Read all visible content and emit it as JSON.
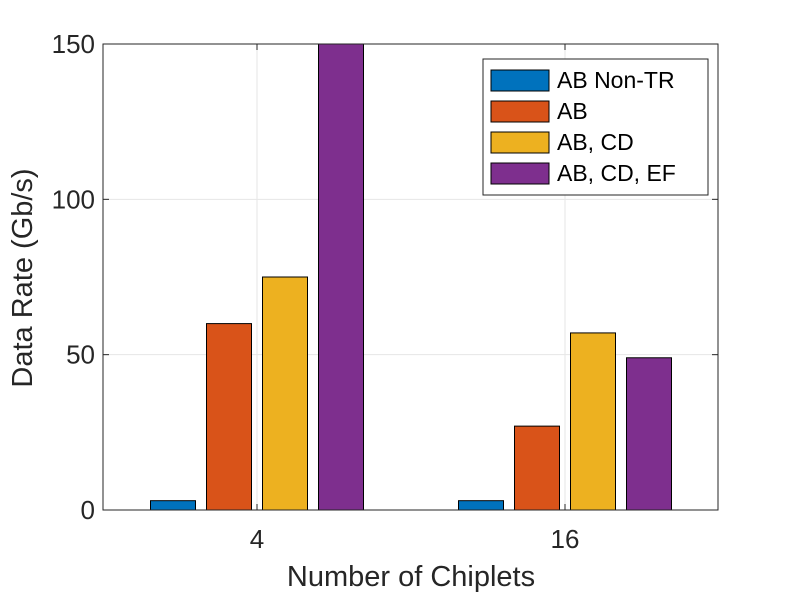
{
  "chart_data": {
    "type": "bar",
    "xlabel": "Number of Chiplets",
    "ylabel": "Data Rate (Gb/s)",
    "categories": [
      "4",
      "16"
    ],
    "ylim": [
      0,
      150
    ],
    "yticks": [
      "0",
      "50",
      "100",
      "150"
    ],
    "grid": true,
    "legend_position": "top-right",
    "series": [
      {
        "name": "AB Non-TR",
        "color": "#0072BD",
        "values": [
          3,
          3
        ]
      },
      {
        "name": "AB",
        "color": "#D95319",
        "values": [
          60,
          27
        ]
      },
      {
        "name": "AB, CD",
        "color": "#EDB120",
        "values": [
          75,
          57
        ]
      },
      {
        "name": "AB, CD, EF",
        "color": "#7E2F8E",
        "values": [
          150,
          49
        ]
      }
    ]
  }
}
